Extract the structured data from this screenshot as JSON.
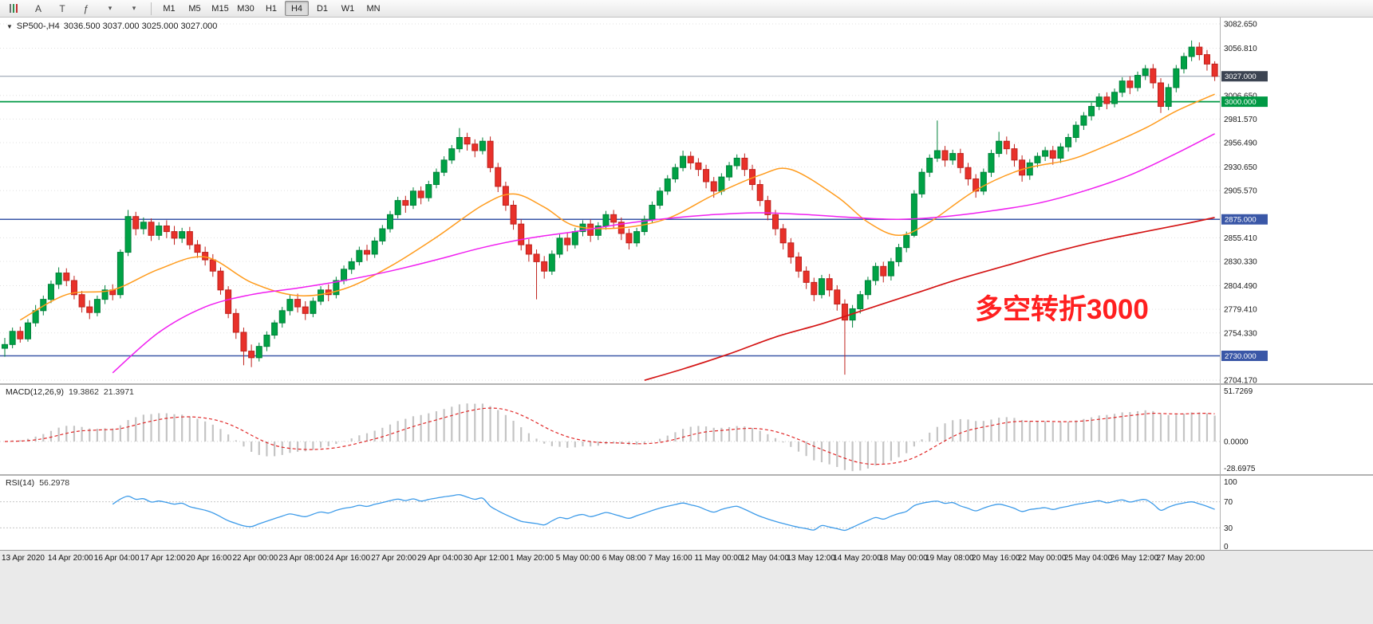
{
  "toolbar": {
    "tools": [
      {
        "name": "chart-bars-icon",
        "glyph": "",
        "kind": "bars"
      },
      {
        "name": "cursor-tool-icon",
        "glyph": "A",
        "kind": "text"
      },
      {
        "name": "text-tool-icon",
        "glyph": "T",
        "kind": "text"
      },
      {
        "name": "indicators-icon",
        "glyph": "ƒ",
        "kind": "text"
      },
      {
        "name": "dropdown-arrow-icon",
        "glyph": "▾",
        "kind": "arrow"
      },
      {
        "name": "dropdown-arrow-icon",
        "glyph": "▾",
        "kind": "arrow"
      }
    ],
    "timeframes": [
      "M1",
      "M5",
      "M15",
      "M30",
      "H1",
      "H4",
      "D1",
      "W1",
      "MN"
    ],
    "active_timeframe": "H4"
  },
  "chart": {
    "marker": "▼",
    "header_symbol": "SP500-,H4",
    "header_ohlc": "3036.500 3037.000 3025.000 3027.000",
    "annotation": {
      "text": "多空转折3000",
      "color": "#ff1f1f"
    },
    "price_axis_labels": [
      "3082.650",
      "3056.810",
      "3006.650",
      "2981.570",
      "2956.490",
      "2930.650",
      "2905.570",
      "2855.410",
      "2830.330",
      "2804.490",
      "2779.410",
      "2754.330",
      "2704.170"
    ],
    "levels": [
      {
        "value": 3027.0,
        "label": "3027.000",
        "badge_color": "#3c4452",
        "line_color": "#8d99aa",
        "line_width": 1,
        "name": "bid-price-line"
      },
      {
        "value": 3000.0,
        "label": "3000.000",
        "badge_color": "#009944",
        "line_color": "#009944",
        "line_width": 1.8,
        "name": "level-3000-line"
      },
      {
        "value": 2875.0,
        "label": "2875.000",
        "badge_color": "#3a57a7",
        "line_color": "#3a57a7",
        "line_width": 1.6,
        "name": "level-2875-line"
      },
      {
        "value": 2730.0,
        "label": "2730.000",
        "badge_color": "#3a57a7",
        "line_color": "#3a57a7",
        "line_width": 1.6,
        "name": "level-2730-line"
      }
    ],
    "colors": {
      "up": "#00a245",
      "up_border": "#00813a",
      "down": "#e8312a",
      "down_border": "#bf211c",
      "grid": "#e0e0e0"
    }
  },
  "chart_data": {
    "type": "candlestick",
    "title": "SP500-,H4",
    "ylim": [
      2704.17,
      3082.65
    ],
    "x_labels": [
      "13 Apr 2020",
      "14 Apr 20:00",
      "16 Apr 04:00",
      "17 Apr 12:00",
      "20 Apr 16:00",
      "22 Apr 00:00",
      "23 Apr 08:00",
      "24 Apr 16:00",
      "27 Apr 20:00",
      "29 Apr 04:00",
      "30 Apr 12:00",
      "1 May 20:00",
      "5 May 00:00",
      "6 May 08:00",
      "7 May 16:00",
      "11 May 00:00",
      "12 May 04:00",
      "13 May 12:00",
      "14 May 20:00",
      "18 May 00:00",
      "19 May 08:00",
      "20 May 16:00",
      "22 May 00:00",
      "25 May 04:00",
      "26 May 12:00",
      "27 May 20:00"
    ],
    "candles": [
      [
        2738,
        2749,
        2729,
        2742
      ],
      [
        2742,
        2760,
        2738,
        2756
      ],
      [
        2756,
        2761,
        2744,
        2748
      ],
      [
        2748,
        2769,
        2745,
        2765
      ],
      [
        2765,
        2784,
        2761,
        2778
      ],
      [
        2778,
        2794,
        2773,
        2790
      ],
      [
        2790,
        2810,
        2786,
        2806
      ],
      [
        2806,
        2824,
        2801,
        2818
      ],
      [
        2818,
        2823,
        2804,
        2810
      ],
      [
        2810,
        2815,
        2790,
        2795
      ],
      [
        2795,
        2799,
        2776,
        2782
      ],
      [
        2782,
        2789,
        2769,
        2776
      ],
      [
        2776,
        2794,
        2772,
        2790
      ],
      [
        2790,
        2805,
        2785,
        2800
      ],
      [
        2800,
        2806,
        2789,
        2795
      ],
      [
        2795,
        2843,
        2791,
        2840
      ],
      [
        2840,
        2885,
        2836,
        2878
      ],
      [
        2878,
        2883,
        2858,
        2865
      ],
      [
        2865,
        2877,
        2859,
        2872
      ],
      [
        2872,
        2876,
        2852,
        2858
      ],
      [
        2858,
        2872,
        2853,
        2868
      ],
      [
        2868,
        2874,
        2855,
        2862
      ],
      [
        2862,
        2868,
        2848,
        2855
      ],
      [
        2855,
        2866,
        2850,
        2862
      ],
      [
        2862,
        2867,
        2843,
        2848
      ],
      [
        2848,
        2853,
        2834,
        2840
      ],
      [
        2840,
        2846,
        2826,
        2832
      ],
      [
        2832,
        2838,
        2814,
        2820
      ],
      [
        2820,
        2824,
        2795,
        2800
      ],
      [
        2800,
        2804,
        2770,
        2775
      ],
      [
        2775,
        2780,
        2748,
        2755
      ],
      [
        2755,
        2760,
        2720,
        2735
      ],
      [
        2735,
        2742,
        2718,
        2728
      ],
      [
        2728,
        2744,
        2724,
        2740
      ],
      [
        2740,
        2756,
        2735,
        2752
      ],
      [
        2752,
        2768,
        2748,
        2765
      ],
      [
        2765,
        2782,
        2760,
        2778
      ],
      [
        2778,
        2795,
        2773,
        2790
      ],
      [
        2790,
        2796,
        2776,
        2782
      ],
      [
        2782,
        2788,
        2768,
        2775
      ],
      [
        2775,
        2792,
        2771,
        2788
      ],
      [
        2788,
        2804,
        2784,
        2800
      ],
      [
        2800,
        2806,
        2788,
        2795
      ],
      [
        2795,
        2814,
        2791,
        2810
      ],
      [
        2810,
        2826,
        2806,
        2822
      ],
      [
        2822,
        2834,
        2817,
        2830
      ],
      [
        2830,
        2846,
        2826,
        2842
      ],
      [
        2842,
        2848,
        2831,
        2838
      ],
      [
        2838,
        2856,
        2834,
        2852
      ],
      [
        2852,
        2869,
        2848,
        2865
      ],
      [
        2865,
        2884,
        2861,
        2880
      ],
      [
        2880,
        2899,
        2876,
        2895
      ],
      [
        2895,
        2900,
        2882,
        2890
      ],
      [
        2890,
        2909,
        2886,
        2905
      ],
      [
        2905,
        2910,
        2891,
        2898
      ],
      [
        2898,
        2916,
        2894,
        2912
      ],
      [
        2912,
        2929,
        2908,
        2925
      ],
      [
        2925,
        2942,
        2921,
        2938
      ],
      [
        2938,
        2954,
        2934,
        2950
      ],
      [
        2950,
        2972,
        2946,
        2962
      ],
      [
        2962,
        2967,
        2948,
        2955
      ],
      [
        2955,
        2960,
        2941,
        2948
      ],
      [
        2948,
        2962,
        2944,
        2958
      ],
      [
        2958,
        2963,
        2925,
        2930
      ],
      [
        2930,
        2935,
        2904,
        2910
      ],
      [
        2910,
        2915,
        2884,
        2890
      ],
      [
        2890,
        2895,
        2864,
        2870
      ],
      [
        2870,
        2875,
        2842,
        2848
      ],
      [
        2848,
        2854,
        2830,
        2838
      ],
      [
        2838,
        2843,
        2790,
        2830
      ],
      [
        2830,
        2836,
        2812,
        2820
      ],
      [
        2820,
        2842,
        2816,
        2838
      ],
      [
        2838,
        2859,
        2834,
        2855
      ],
      [
        2855,
        2861,
        2841,
        2848
      ],
      [
        2848,
        2866,
        2844,
        2862
      ],
      [
        2862,
        2874,
        2857,
        2870
      ],
      [
        2870,
        2875,
        2851,
        2858
      ],
      [
        2858,
        2872,
        2853,
        2868
      ],
      [
        2868,
        2884,
        2864,
        2880
      ],
      [
        2880,
        2885,
        2865,
        2872
      ],
      [
        2872,
        2877,
        2853,
        2860
      ],
      [
        2860,
        2865,
        2843,
        2850
      ],
      [
        2850,
        2866,
        2846,
        2862
      ],
      [
        2862,
        2879,
        2858,
        2875
      ],
      [
        2875,
        2894,
        2871,
        2890
      ],
      [
        2890,
        2909,
        2886,
        2905
      ],
      [
        2905,
        2922,
        2901,
        2918
      ],
      [
        2918,
        2934,
        2914,
        2930
      ],
      [
        2930,
        2948,
        2926,
        2942
      ],
      [
        2942,
        2947,
        2928,
        2935
      ],
      [
        2935,
        2940,
        2921,
        2928
      ],
      [
        2928,
        2933,
        2908,
        2915
      ],
      [
        2915,
        2920,
        2898,
        2905
      ],
      [
        2905,
        2924,
        2901,
        2920
      ],
      [
        2920,
        2936,
        2916,
        2932
      ],
      [
        2932,
        2944,
        2928,
        2940
      ],
      [
        2940,
        2945,
        2921,
        2928
      ],
      [
        2928,
        2933,
        2906,
        2912
      ],
      [
        2912,
        2917,
        2889,
        2895
      ],
      [
        2895,
        2900,
        2874,
        2880
      ],
      [
        2880,
        2885,
        2858,
        2865
      ],
      [
        2865,
        2870,
        2843,
        2850
      ],
      [
        2850,
        2855,
        2828,
        2835
      ],
      [
        2835,
        2840,
        2813,
        2820
      ],
      [
        2820,
        2825,
        2801,
        2808
      ],
      [
        2808,
        2813,
        2788,
        2795
      ],
      [
        2795,
        2816,
        2791,
        2812
      ],
      [
        2812,
        2817,
        2793,
        2800
      ],
      [
        2800,
        2805,
        2778,
        2785
      ],
      [
        2785,
        2790,
        2710,
        2768
      ],
      [
        2768,
        2784,
        2760,
        2780
      ],
      [
        2780,
        2799,
        2775,
        2795
      ],
      [
        2795,
        2814,
        2790,
        2810
      ],
      [
        2810,
        2829,
        2805,
        2825
      ],
      [
        2825,
        2830,
        2808,
        2815
      ],
      [
        2815,
        2834,
        2810,
        2830
      ],
      [
        2830,
        2849,
        2825,
        2845
      ],
      [
        2845,
        2862,
        2840,
        2858
      ],
      [
        2858,
        2906,
        2856,
        2902
      ],
      [
        2902,
        2929,
        2898,
        2925
      ],
      [
        2925,
        2944,
        2920,
        2940
      ],
      [
        2940,
        2980,
        2936,
        2948
      ],
      [
        2948,
        2953,
        2931,
        2938
      ],
      [
        2938,
        2949,
        2933,
        2945
      ],
      [
        2945,
        2950,
        2924,
        2930
      ],
      [
        2930,
        2935,
        2911,
        2918
      ],
      [
        2918,
        2923,
        2898,
        2905
      ],
      [
        2905,
        2929,
        2901,
        2925
      ],
      [
        2925,
        2949,
        2920,
        2945
      ],
      [
        2945,
        2968,
        2941,
        2958
      ],
      [
        2958,
        2963,
        2944,
        2950
      ],
      [
        2950,
        2955,
        2931,
        2938
      ],
      [
        2938,
        2943,
        2915,
        2922
      ],
      [
        2922,
        2939,
        2917,
        2935
      ],
      [
        2935,
        2946,
        2930,
        2942
      ],
      [
        2942,
        2952,
        2937,
        2948
      ],
      [
        2948,
        2953,
        2933,
        2940
      ],
      [
        2940,
        2956,
        2935,
        2952
      ],
      [
        2952,
        2966,
        2947,
        2962
      ],
      [
        2962,
        2979,
        2957,
        2975
      ],
      [
        2975,
        2989,
        2970,
        2985
      ],
      [
        2985,
        2999,
        2980,
        2995
      ],
      [
        2995,
        3009,
        2991,
        3005
      ],
      [
        3005,
        3010,
        2992,
        2998
      ],
      [
        2998,
        3014,
        2994,
        3010
      ],
      [
        3010,
        3026,
        3005,
        3022
      ],
      [
        3022,
        3027,
        3008,
        3015
      ],
      [
        3015,
        3032,
        3011,
        3028
      ],
      [
        3028,
        3039,
        3023,
        3035
      ],
      [
        3035,
        3040,
        3014,
        3020
      ],
      [
        3020,
        3025,
        2988,
        2995
      ],
      [
        2995,
        3019,
        2991,
        3015
      ],
      [
        3015,
        3039,
        3010,
        3035
      ],
      [
        3035,
        3052,
        3030,
        3048
      ],
      [
        3048,
        3065,
        3043,
        3058
      ],
      [
        3058,
        3063,
        3044,
        3050
      ],
      [
        3050,
        3055,
        3033,
        3040
      ],
      [
        3040,
        3043,
        3022,
        3027
      ]
    ],
    "moving_averages": [
      {
        "name": "ma-fast-orange",
        "color": "#ff9b1c",
        "width": 1.5,
        "points": [
          [
            2,
            2768
          ],
          [
            8,
            2795
          ],
          [
            14,
            2800
          ],
          [
            20,
            2822
          ],
          [
            26,
            2835
          ],
          [
            32,
            2808
          ],
          [
            38,
            2794
          ],
          [
            44,
            2801
          ],
          [
            50,
            2825
          ],
          [
            56,
            2856
          ],
          [
            62,
            2890
          ],
          [
            66,
            2902
          ],
          [
            70,
            2888
          ],
          [
            74,
            2868
          ],
          [
            80,
            2866
          ],
          [
            86,
            2876
          ],
          [
            92,
            2901
          ],
          [
            98,
            2922
          ],
          [
            102,
            2928
          ],
          [
            108,
            2899
          ],
          [
            112,
            2872
          ],
          [
            116,
            2858
          ],
          [
            120,
            2872
          ],
          [
            126,
            2906
          ],
          [
            132,
            2928
          ],
          [
            138,
            2938
          ],
          [
            142,
            2950
          ],
          [
            148,
            2972
          ],
          [
            152,
            2990
          ],
          [
            157,
            3008
          ]
        ]
      },
      {
        "name": "ma-mid-magenta",
        "color": "#f01ff0",
        "width": 1.5,
        "points": [
          [
            14,
            2712
          ],
          [
            20,
            2755
          ],
          [
            26,
            2782
          ],
          [
            32,
            2795
          ],
          [
            38,
            2802
          ],
          [
            44,
            2810
          ],
          [
            50,
            2820
          ],
          [
            56,
            2832
          ],
          [
            62,
            2845
          ],
          [
            68,
            2855
          ],
          [
            74,
            2862
          ],
          [
            80,
            2870
          ],
          [
            86,
            2876
          ],
          [
            92,
            2880
          ],
          [
            98,
            2882
          ],
          [
            104,
            2880
          ],
          [
            110,
            2877
          ],
          [
            116,
            2875
          ],
          [
            122,
            2878
          ],
          [
            128,
            2884
          ],
          [
            134,
            2892
          ],
          [
            140,
            2905
          ],
          [
            146,
            2922
          ],
          [
            152,
            2945
          ],
          [
            157,
            2966
          ]
        ]
      },
      {
        "name": "ma-slow-red",
        "color": "#d41414",
        "width": 1.7,
        "points": [
          [
            83,
            2704
          ],
          [
            88,
            2716
          ],
          [
            94,
            2732
          ],
          [
            100,
            2750
          ],
          [
            106,
            2764
          ],
          [
            112,
            2780
          ],
          [
            118,
            2796
          ],
          [
            124,
            2812
          ],
          [
            130,
            2826
          ],
          [
            136,
            2840
          ],
          [
            142,
            2852
          ],
          [
            148,
            2862
          ],
          [
            153,
            2870
          ],
          [
            157,
            2877
          ]
        ]
      }
    ]
  },
  "macd": {
    "label": "MACD(12,26,9)",
    "value1": "19.3862",
    "value2": "21.3971",
    "scale": [
      "51.7269",
      "0.0000",
      "-28.6975"
    ],
    "histogram_color": "#c4c4c4",
    "signal_color": "#e02828"
  },
  "rsi": {
    "label": "RSI(14)",
    "value": "56.2978",
    "scale": [
      "100",
      "70",
      "30",
      "0"
    ],
    "levels": [
      70,
      30
    ],
    "line_color": "#3d9be9"
  }
}
